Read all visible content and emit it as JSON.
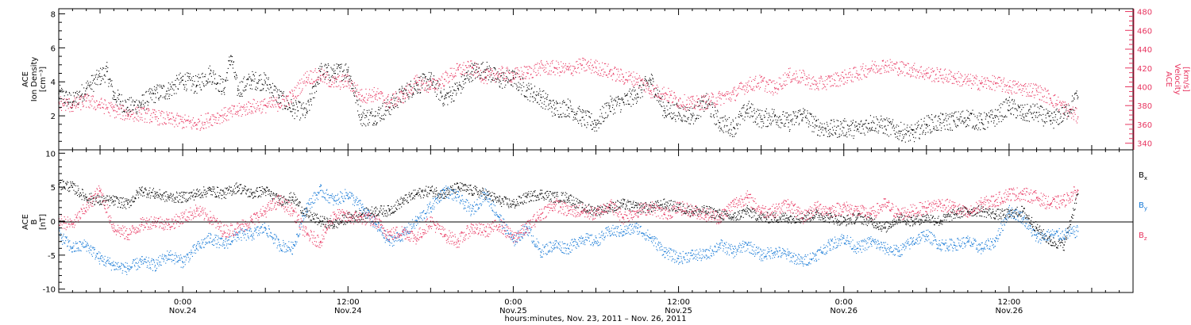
{
  "colors": {
    "axis": "#000000",
    "density": "#000000",
    "velocity": "#e8345f",
    "bx": "#000000",
    "by": "#1478d6",
    "bz": "#e8345f"
  },
  "time_axis": {
    "title": "hours:minutes, Nov. 23, 2011 – Nov. 26, 2011",
    "ticks": [
      {
        "t": 9,
        "time": "0:00",
        "date": "Nov.24"
      },
      {
        "t": 21,
        "time": "12:00",
        "date": "Nov.24"
      },
      {
        "t": 33,
        "time": "0:00",
        "date": "Nov.25"
      },
      {
        "t": 45,
        "time": "12:00",
        "date": "Nov.25"
      },
      {
        "t": 57,
        "time": "0:00",
        "date": "Nov.26"
      },
      {
        "t": 69,
        "time": "12:00",
        "date": "Nov.26"
      }
    ]
  },
  "chart_data": [
    {
      "type": "scatter",
      "ylabel_left": [
        "ACE",
        "Ion Density",
        "[cm⁻³]"
      ],
      "ylabel_right": [
        "ACE",
        "Velocity",
        "[km/s]"
      ],
      "x_unit": "hours after Nov.23 15:00",
      "xlim": [
        0,
        78
      ],
      "ylim_left": [
        0,
        8.3
      ],
      "ylim_right": [
        333,
        483
      ],
      "yticks_left": [
        2,
        4,
        6,
        8
      ],
      "yticks_right": [
        340,
        360,
        380,
        400,
        420,
        440,
        460,
        480
      ],
      "series": [
        {
          "name": "density",
          "axis": "left",
          "color": "#000000",
          "x": [
            0,
            1,
            2,
            3,
            3.5,
            4,
            5,
            6,
            7,
            8,
            9,
            10,
            11,
            12,
            12.5,
            13,
            14,
            15,
            16,
            17,
            18,
            19,
            20,
            21,
            22,
            23,
            24,
            25,
            26,
            27,
            28,
            29,
            30,
            31,
            32,
            33,
            34,
            35,
            36,
            37,
            38,
            39,
            40,
            41,
            42,
            43,
            44,
            45,
            46,
            47,
            48,
            49,
            50,
            51,
            52,
            53,
            54,
            55,
            56,
            57,
            58,
            59,
            60,
            61,
            62,
            63,
            64,
            65,
            66,
            67,
            68,
            69,
            70,
            71,
            72,
            73,
            74
          ],
          "y": [
            3.3,
            2.8,
            3.6,
            4.3,
            4.6,
            3.2,
            2.5,
            2.7,
            3.3,
            3.5,
            4.1,
            3.8,
            4.5,
            3.6,
            5.5,
            3.5,
            4.1,
            4.0,
            3.1,
            2.4,
            2.2,
            4.6,
            4.5,
            4.7,
            1.9,
            2.0,
            2.5,
            3.3,
            3.8,
            4.1,
            3.0,
            3.6,
            4.6,
            4.7,
            4.1,
            4.2,
            3.5,
            3.1,
            2.4,
            2.5,
            1.9,
            1.5,
            2.6,
            2.8,
            3.3,
            4.1,
            2.3,
            2.2,
            2.0,
            2.8,
            1.6,
            1.3,
            2.4,
            1.8,
            2.0,
            1.6,
            2.1,
            1.4,
            1.2,
            1.3,
            1.2,
            1.6,
            1.4,
            1.1,
            0.9,
            1.5,
            1.6,
            1.7,
            1.9,
            1.6,
            1.9,
            2.6,
            2.1,
            2.2,
            1.7,
            2.1,
            3.1
          ]
        },
        {
          "name": "velocity",
          "axis": "right",
          "color": "#e8345f",
          "x": [
            0,
            1,
            2,
            3,
            4,
            5,
            6,
            7,
            8,
            9,
            10,
            11,
            12,
            13,
            14,
            15,
            16,
            17,
            18,
            19,
            20,
            21,
            22,
            23,
            24,
            25,
            26,
            27,
            28,
            29,
            30,
            31,
            32,
            33,
            34,
            35,
            36,
            37,
            38,
            39,
            40,
            41,
            42,
            43,
            44,
            45,
            46,
            47,
            48,
            49,
            50,
            51,
            52,
            53,
            54,
            55,
            56,
            57,
            58,
            59,
            60,
            61,
            62,
            63,
            64,
            65,
            66,
            67,
            68,
            69,
            70,
            71,
            72,
            73,
            74
          ],
          "y": [
            383,
            380,
            385,
            381,
            375,
            371,
            371,
            368,
            365,
            363,
            360,
            366,
            370,
            374,
            379,
            380,
            382,
            390,
            410,
            412,
            404,
            406,
            390,
            392,
            384,
            390,
            405,
            400,
            408,
            418,
            420,
            410,
            414,
            412,
            415,
            420,
            420,
            418,
            423,
            421,
            416,
            410,
            408,
            396,
            393,
            385,
            382,
            384,
            388,
            392,
            402,
            405,
            398,
            412,
            410,
            402,
            406,
            410,
            414,
            420,
            423,
            420,
            418,
            414,
            412,
            410,
            406,
            404,
            404,
            400,
            398,
            396,
            388,
            378,
            368
          ]
        }
      ]
    },
    {
      "type": "scatter",
      "ylabel": [
        "ACE",
        "B",
        "[nT]"
      ],
      "x_unit": "hours after Nov.23 15:00",
      "xlim": [
        0,
        78
      ],
      "ylim": [
        -10.5,
        10.5
      ],
      "yticks": [
        -10,
        -5,
        0,
        5,
        10
      ],
      "zero_line": true,
      "series": [
        {
          "name": "Bx",
          "label_main": "B",
          "label_sub": "x",
          "color": "#000000",
          "x": [
            0,
            1,
            2,
            3,
            4,
            5,
            6,
            7,
            8,
            9,
            10,
            11,
            12,
            13,
            14,
            15,
            16,
            17,
            18,
            19,
            20,
            21,
            22,
            23,
            24,
            25,
            26,
            27,
            28,
            29,
            30,
            31,
            32,
            33,
            34,
            35,
            36,
            37,
            38,
            39,
            40,
            41,
            42,
            43,
            44,
            45,
            46,
            47,
            48,
            49,
            50,
            51,
            52,
            53,
            54,
            55,
            56,
            57,
            58,
            59,
            60,
            61,
            62,
            63,
            64,
            65,
            66,
            67,
            68,
            69,
            70,
            71,
            72,
            73,
            74
          ],
          "y": [
            5.5,
            5.0,
            3.5,
            3.0,
            3.0,
            2.5,
            4.5,
            4.0,
            3.5,
            3.5,
            4.0,
            4.5,
            4.0,
            5.0,
            4.0,
            4.5,
            3.0,
            3.5,
            1.0,
            0.0,
            -0.5,
            0.5,
            1.0,
            1.5,
            1.5,
            3.0,
            4.0,
            4.5,
            4.0,
            5.0,
            4.5,
            4.0,
            3.0,
            2.5,
            3.5,
            4.0,
            3.5,
            3.5,
            2.0,
            1.5,
            2.0,
            2.5,
            2.0,
            2.0,
            2.5,
            2.0,
            1.5,
            1.5,
            1.0,
            0.5,
            1.5,
            0.5,
            0.5,
            0.5,
            0.5,
            1.0,
            0.5,
            0.0,
            0.5,
            0.0,
            -1.0,
            0.5,
            0.0,
            0.5,
            0.0,
            1.0,
            1.5,
            1.5,
            1.0,
            1.0,
            1.5,
            -1.0,
            -3.0,
            -3.5,
            4.0
          ]
        },
        {
          "name": "By",
          "label_main": "B",
          "label_sub": "y",
          "color": "#1478d6",
          "x": [
            0,
            1,
            2,
            3,
            4,
            5,
            6,
            7,
            8,
            9,
            10,
            11,
            12,
            13,
            14,
            15,
            16,
            17,
            18,
            19,
            20,
            21,
            22,
            23,
            24,
            25,
            26,
            27,
            28,
            29,
            30,
            31,
            32,
            33,
            34,
            35,
            36,
            37,
            38,
            39,
            40,
            41,
            42,
            43,
            44,
            45,
            46,
            47,
            48,
            49,
            50,
            51,
            52,
            53,
            54,
            55,
            56,
            57,
            58,
            59,
            60,
            61,
            62,
            63,
            64,
            65,
            66,
            67,
            68,
            69,
            70,
            71,
            72,
            73,
            74
          ],
          "y": [
            -2.0,
            -4.0,
            -3.5,
            -5.5,
            -6.5,
            -7.0,
            -6.0,
            -6.5,
            -5.0,
            -6.0,
            -4.0,
            -2.5,
            -3.5,
            -2.0,
            -2.0,
            -1.0,
            -3.5,
            -4.0,
            2.0,
            4.5,
            3.0,
            4.0,
            2.0,
            -0.5,
            -3.0,
            -2.0,
            0.0,
            2.0,
            4.5,
            3.5,
            1.5,
            4.0,
            0.5,
            -3.0,
            -1.0,
            -4.5,
            -3.5,
            -4.0,
            -2.5,
            -3.0,
            -1.5,
            -1.5,
            -1.0,
            -2.5,
            -4.5,
            -5.5,
            -5.0,
            -5.0,
            -3.5,
            -4.5,
            -3.5,
            -5.0,
            -4.5,
            -5.0,
            -6.0,
            -5.0,
            -3.5,
            -2.5,
            -4.0,
            -3.0,
            -4.0,
            -4.5,
            -3.0,
            -2.0,
            -3.5,
            -3.5,
            -3.0,
            -4.0,
            -3.0,
            1.5,
            0.5,
            -2.5,
            -2.0,
            -2.0,
            -1.5
          ]
        },
        {
          "name": "Bz",
          "label_main": "B",
          "label_sub": "z",
          "color": "#e8345f",
          "x": [
            0,
            1,
            2,
            3,
            4,
            5,
            6,
            7,
            8,
            9,
            10,
            11,
            12,
            13,
            14,
            15,
            16,
            17,
            18,
            19,
            20,
            21,
            22,
            23,
            24,
            25,
            26,
            27,
            28,
            29,
            30,
            31,
            32,
            33,
            34,
            35,
            36,
            37,
            38,
            39,
            40,
            41,
            42,
            43,
            44,
            45,
            46,
            47,
            48,
            49,
            50,
            51,
            52,
            53,
            54,
            55,
            56,
            57,
            58,
            59,
            60,
            61,
            62,
            63,
            64,
            65,
            66,
            67,
            68,
            69,
            70,
            71,
            72,
            73,
            74
          ],
          "y": [
            0.0,
            -0.5,
            2.0,
            4.5,
            -1.0,
            -2.0,
            -0.5,
            0.0,
            -0.5,
            0.5,
            1.5,
            0.5,
            -1.5,
            -1.0,
            0.0,
            1.5,
            3.0,
            1.5,
            -2.0,
            -3.0,
            1.0,
            0.5,
            0.5,
            0.0,
            -2.0,
            -1.5,
            -2.5,
            0.0,
            -2.0,
            -3.0,
            -1.0,
            -1.5,
            -0.5,
            -2.5,
            -1.0,
            1.0,
            2.5,
            1.5,
            1.5,
            1.0,
            2.5,
            0.5,
            1.5,
            2.0,
            1.0,
            2.0,
            1.5,
            1.0,
            0.5,
            2.5,
            3.5,
            1.5,
            1.5,
            2.5,
            0.5,
            2.0,
            1.5,
            2.0,
            1.5,
            1.0,
            2.5,
            1.0,
            1.5,
            2.0,
            2.5,
            2.0,
            1.0,
            2.5,
            3.0,
            4.0,
            4.0,
            3.5,
            2.5,
            3.0,
            4.5
          ]
        }
      ]
    }
  ]
}
